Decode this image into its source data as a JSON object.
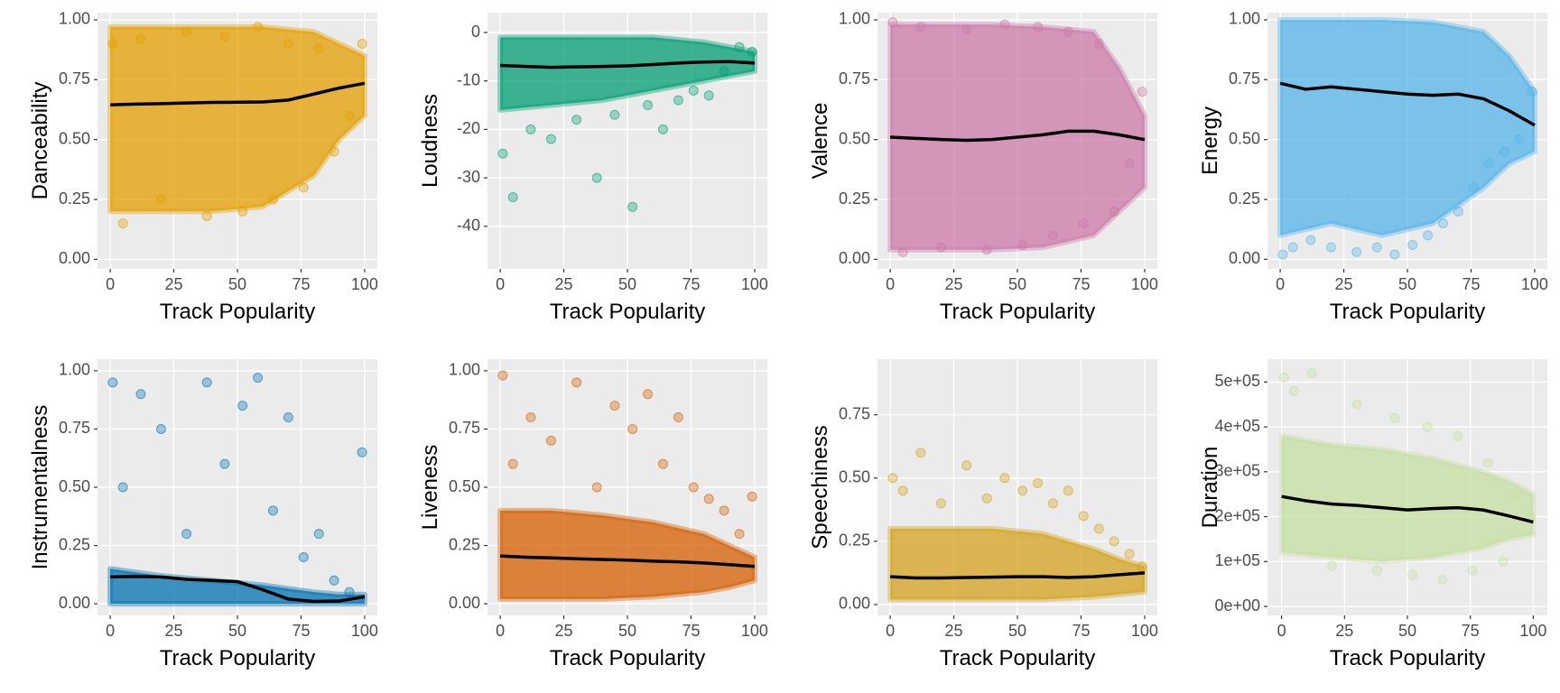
{
  "chart_data": [
    {
      "type": "scatter",
      "y_label": "Danceability",
      "x_label": "Track Popularity",
      "color": "#E69F00",
      "xlim": [
        -5,
        105
      ],
      "ylim": [
        -0.04,
        1.03
      ],
      "xticks": [
        0,
        25,
        50,
        75,
        100
      ],
      "yticks": [
        {
          "value": 0,
          "label": "0.00"
        },
        0.25,
        {
          "value": 0.5,
          "label": "0.50"
        },
        0.75,
        {
          "value": 1,
          "label": "1.00"
        }
      ],
      "cloud": {
        "x": [
          0,
          20,
          40,
          60,
          80,
          90,
          100
        ],
        "ymin": [
          0.2,
          0.2,
          0.2,
          0.22,
          0.35,
          0.5,
          0.6
        ],
        "ymax": [
          0.97,
          0.97,
          0.97,
          0.97,
          0.95,
          0.9,
          0.85
        ]
      },
      "points": {
        "x": [
          1,
          5,
          12,
          20,
          30,
          38,
          45,
          52,
          58,
          64,
          70,
          76,
          82,
          88,
          94,
          99
        ],
        "y": [
          0.9,
          0.15,
          0.92,
          0.25,
          0.95,
          0.18,
          0.93,
          0.2,
          0.97,
          0.25,
          0.9,
          0.3,
          0.88,
          0.45,
          0.6,
          0.9
        ]
      },
      "trend": {
        "x": [
          0,
          10,
          20,
          30,
          40,
          50,
          60,
          70,
          80,
          90,
          100
        ],
        "y": [
          0.645,
          0.648,
          0.65,
          0.653,
          0.655,
          0.656,
          0.657,
          0.665,
          0.69,
          0.715,
          0.735
        ]
      }
    },
    {
      "type": "scatter",
      "y_label": "Loudness",
      "x_label": "Track Popularity",
      "color": "#009E73",
      "xlim": [
        -5,
        105
      ],
      "ylim": [
        -48.8,
        4.1
      ],
      "xticks": [
        0,
        25,
        50,
        75,
        100
      ],
      "yticks": [
        -40,
        -30,
        -20,
        -10,
        0
      ],
      "cloud": {
        "x": [
          0,
          20,
          40,
          60,
          80,
          90,
          100
        ],
        "ymin": [
          -16,
          -15,
          -14,
          -12,
          -10,
          -9,
          -8
        ],
        "ymax": [
          -1,
          -1,
          -1,
          -1,
          -2,
          -3,
          -4
        ]
      },
      "points": {
        "x": [
          1,
          5,
          12,
          20,
          30,
          38,
          45,
          52,
          58,
          64,
          70,
          76,
          82,
          88,
          94,
          99
        ],
        "y": [
          -25,
          -34,
          -20,
          -22,
          -18,
          -30,
          -17,
          -36,
          -15,
          -20,
          -14,
          -12,
          -13,
          -8,
          -3,
          -4
        ]
      },
      "trend": {
        "x": [
          0,
          10,
          20,
          30,
          40,
          50,
          60,
          70,
          80,
          90,
          100
        ],
        "y": [
          -6.8,
          -7.0,
          -7.2,
          -7.1,
          -7.0,
          -6.9,
          -6.6,
          -6.3,
          -6.1,
          -6.0,
          -6.3
        ]
      }
    },
    {
      "type": "scatter",
      "y_label": "Valence",
      "x_label": "Track Popularity",
      "color": "#CC79A7",
      "xlim": [
        -5,
        105
      ],
      "ylim": [
        -0.04,
        1.03
      ],
      "xticks": [
        0,
        25,
        50,
        75,
        100
      ],
      "yticks": [
        {
          "value": 0,
          "label": "0.00"
        },
        0.25,
        {
          "value": 0.5,
          "label": "0.50"
        },
        0.75,
        {
          "value": 1,
          "label": "1.00"
        }
      ],
      "cloud": {
        "x": [
          0,
          20,
          40,
          60,
          80,
          90,
          100
        ],
        "ymin": [
          0.04,
          0.04,
          0.04,
          0.05,
          0.1,
          0.2,
          0.3
        ],
        "ymax": [
          0.98,
          0.98,
          0.98,
          0.97,
          0.95,
          0.8,
          0.6
        ]
      },
      "points": {
        "x": [
          1,
          5,
          12,
          20,
          30,
          38,
          45,
          52,
          58,
          64,
          70,
          76,
          82,
          88,
          94,
          99
        ],
        "y": [
          0.99,
          0.03,
          0.97,
          0.05,
          0.96,
          0.04,
          0.98,
          0.06,
          0.97,
          0.1,
          0.95,
          0.15,
          0.9,
          0.2,
          0.4,
          0.7
        ]
      },
      "trend": {
        "x": [
          0,
          10,
          20,
          30,
          40,
          50,
          60,
          70,
          80,
          90,
          100
        ],
        "y": [
          0.51,
          0.505,
          0.5,
          0.497,
          0.5,
          0.51,
          0.52,
          0.535,
          0.535,
          0.52,
          0.5
        ]
      }
    },
    {
      "type": "scatter",
      "y_label": "Energy",
      "x_label": "Track Popularity",
      "color": "#56B4E9",
      "xlim": [
        -5,
        105
      ],
      "ylim": [
        -0.04,
        1.03
      ],
      "xticks": [
        0,
        25,
        50,
        75,
        100
      ],
      "yticks": [
        {
          "value": 0,
          "label": "0.00"
        },
        0.25,
        {
          "value": 0.5,
          "label": "0.50"
        },
        0.75,
        {
          "value": 1,
          "label": "1.00"
        }
      ],
      "cloud": {
        "x": [
          0,
          20,
          40,
          60,
          80,
          90,
          100
        ],
        "ymin": [
          0.1,
          0.15,
          0.1,
          0.15,
          0.3,
          0.4,
          0.45
        ],
        "ymax": [
          1,
          1,
          1,
          0.99,
          0.95,
          0.85,
          0.7
        ]
      },
      "points": {
        "x": [
          1,
          5,
          12,
          20,
          30,
          38,
          45,
          52,
          58,
          64,
          70,
          76,
          82,
          88,
          94,
          99
        ],
        "y": [
          0.02,
          0.05,
          0.08,
          0.05,
          0.03,
          0.05,
          0.02,
          0.06,
          0.1,
          0.15,
          0.2,
          0.3,
          0.4,
          0.45,
          0.5,
          0.7
        ]
      },
      "trend": {
        "x": [
          0,
          10,
          20,
          30,
          40,
          50,
          60,
          70,
          80,
          90,
          100
        ],
        "y": [
          0.735,
          0.71,
          0.72,
          0.71,
          0.7,
          0.69,
          0.685,
          0.69,
          0.67,
          0.62,
          0.56
        ]
      }
    },
    {
      "type": "scatter",
      "y_label": "Instrumentalness",
      "x_label": "Track Popularity",
      "color": "#0072B2",
      "xlim": [
        -5,
        105
      ],
      "ylim": [
        -0.05,
        1.05
      ],
      "xticks": [
        0,
        25,
        50,
        75,
        100
      ],
      "yticks": [
        {
          "value": 0,
          "label": "0.00"
        },
        0.25,
        {
          "value": 0.5,
          "label": "0.50"
        },
        0.75,
        {
          "value": 1,
          "label": "1.00"
        }
      ],
      "cloud": {
        "x": [
          0,
          20,
          40,
          60,
          80,
          90,
          100
        ],
        "ymin": [
          0,
          0,
          0,
          0,
          0,
          0,
          0
        ],
        "ymax": [
          0.15,
          0.12,
          0.1,
          0.08,
          0.05,
          0.04,
          0.04
        ]
      },
      "points": {
        "x": [
          1,
          5,
          12,
          20,
          30,
          38,
          45,
          52,
          58,
          64,
          70,
          76,
          82,
          88,
          94,
          99
        ],
        "y": [
          0.95,
          0.5,
          0.9,
          0.75,
          0.3,
          0.95,
          0.6,
          0.85,
          0.97,
          0.4,
          0.8,
          0.2,
          0.3,
          0.1,
          0.05,
          0.65
        ]
      },
      "trend": {
        "x": [
          0,
          10,
          20,
          30,
          40,
          50,
          60,
          70,
          80,
          90,
          100
        ],
        "y": [
          0.115,
          0.117,
          0.115,
          0.105,
          0.1,
          0.095,
          0.06,
          0.02,
          0.01,
          0.012,
          0.03
        ]
      }
    },
    {
      "type": "scatter",
      "y_label": "Liveness",
      "x_label": "Track Popularity",
      "color": "#D55E00",
      "xlim": [
        -5,
        105
      ],
      "ylim": [
        -0.05,
        1.05
      ],
      "xticks": [
        0,
        25,
        50,
        75,
        100
      ],
      "yticks": [
        {
          "value": 0,
          "label": "0.00"
        },
        0.25,
        {
          "value": 0.5,
          "label": "0.50"
        },
        0.75,
        {
          "value": 1,
          "label": "1.00"
        }
      ],
      "cloud": {
        "x": [
          0,
          20,
          40,
          60,
          80,
          90,
          100
        ],
        "ymin": [
          0.02,
          0.02,
          0.02,
          0.03,
          0.05,
          0.07,
          0.1
        ],
        "ymax": [
          0.4,
          0.4,
          0.38,
          0.35,
          0.3,
          0.25,
          0.2
        ]
      },
      "points": {
        "x": [
          1,
          5,
          12,
          20,
          30,
          38,
          45,
          52,
          58,
          64,
          70,
          76,
          82,
          88,
          94,
          99
        ],
        "y": [
          0.98,
          0.6,
          0.8,
          0.7,
          0.95,
          0.5,
          0.85,
          0.75,
          0.9,
          0.6,
          0.8,
          0.5,
          0.45,
          0.4,
          0.3,
          0.46
        ]
      },
      "trend": {
        "x": [
          0,
          10,
          20,
          30,
          40,
          50,
          60,
          70,
          80,
          90,
          100
        ],
        "y": [
          0.205,
          0.2,
          0.197,
          0.193,
          0.19,
          0.187,
          0.183,
          0.18,
          0.175,
          0.168,
          0.16
        ]
      }
    },
    {
      "type": "scatter",
      "y_label": "Speechiness",
      "x_label": "Track Popularity",
      "color": "#D4A21E",
      "xlim": [
        -5,
        105
      ],
      "ylim": [
        -0.043,
        0.97
      ],
      "xticks": [
        0,
        25,
        50,
        75,
        100
      ],
      "yticks": [
        {
          "value": 0,
          "label": "0.00"
        },
        0.25,
        {
          "value": 0.5,
          "label": "0.50"
        },
        0.75
      ],
      "cloud": {
        "x": [
          0,
          20,
          40,
          60,
          80,
          90,
          100
        ],
        "ymin": [
          0.02,
          0.02,
          0.02,
          0.02,
          0.03,
          0.04,
          0.05
        ],
        "ymax": [
          0.3,
          0.3,
          0.3,
          0.28,
          0.22,
          0.18,
          0.15
        ]
      },
      "points": {
        "x": [
          1,
          5,
          12,
          20,
          30,
          38,
          45,
          52,
          58,
          64,
          70,
          76,
          82,
          88,
          94,
          99
        ],
        "y": [
          0.5,
          0.45,
          0.6,
          0.4,
          0.55,
          0.42,
          0.5,
          0.45,
          0.48,
          0.4,
          0.45,
          0.35,
          0.3,
          0.25,
          0.2,
          0.15
        ]
      },
      "trend": {
        "x": [
          0,
          10,
          20,
          30,
          40,
          50,
          60,
          70,
          80,
          90,
          100
        ],
        "y": [
          0.11,
          0.105,
          0.105,
          0.107,
          0.108,
          0.11,
          0.11,
          0.107,
          0.11,
          0.118,
          0.125
        ]
      }
    },
    {
      "type": "scatter",
      "y_label": "Duration",
      "x_label": "Track Popularity",
      "color": "#C5DFA2",
      "xlim": [
        -5.6,
        105.6
      ],
      "ylim": [
        -20000,
        551000
      ],
      "xticks": [
        0,
        25,
        50,
        75,
        100
      ],
      "yticks": [
        {
          "value": 0,
          "label": "0e+00"
        },
        {
          "value": 100000,
          "label": "1e+05"
        },
        {
          "value": 200000,
          "label": "2e+05"
        },
        {
          "value": 300000,
          "label": "3e+05"
        },
        {
          "value": 400000,
          "label": "4e+05"
        },
        {
          "value": 500000,
          "label": "5e+05"
        }
      ],
      "cloud": {
        "x": [
          0,
          20,
          40,
          60,
          80,
          90,
          100
        ],
        "ymin": [
          120000,
          110000,
          100000,
          110000,
          130000,
          150000,
          160000
        ],
        "ymax": [
          380000,
          360000,
          350000,
          330000,
          300000,
          280000,
          250000
        ]
      },
      "points": {
        "x": [
          1,
          5,
          12,
          20,
          30,
          38,
          45,
          52,
          58,
          64,
          70,
          76,
          82,
          88,
          94,
          99
        ],
        "y": [
          510000,
          480000,
          520000,
          90000,
          450000,
          80000,
          420000,
          70000,
          400000,
          60000,
          380000,
          80000,
          320000,
          100000,
          250000,
          200000
        ]
      },
      "trend": {
        "x": [
          0,
          10,
          20,
          30,
          40,
          50,
          60,
          70,
          80,
          90,
          100
        ],
        "y": [
          245000,
          235000,
          228000,
          225000,
          220000,
          215000,
          218000,
          220000,
          215000,
          202000,
          188000
        ]
      }
    }
  ]
}
